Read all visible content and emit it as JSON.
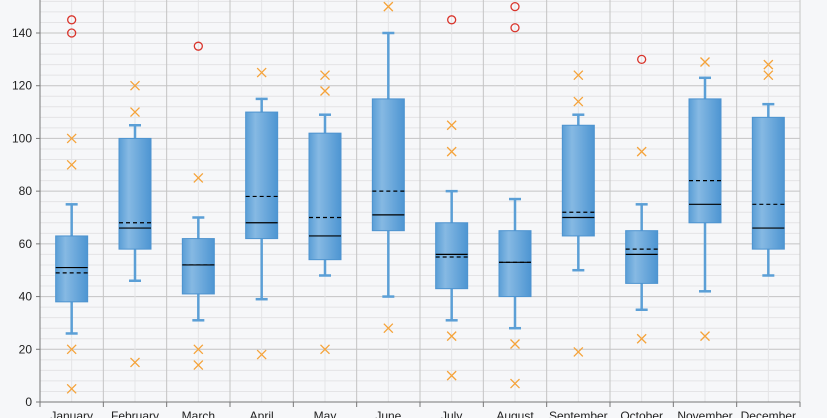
{
  "chart_data": {
    "type": "boxplot",
    "title": "",
    "xlabel": "",
    "ylabel": "",
    "ylim": [
      0,
      152
    ],
    "yticks": [
      0,
      20,
      40,
      60,
      80,
      100,
      120,
      140
    ],
    "grid": true,
    "colors": {
      "box": "#5b9fd6",
      "box_light": "#8bbde6",
      "extreme_outlier": "#d9342b",
      "outlier": "#f5a33a",
      "median": "#000000",
      "mean": "#000000"
    },
    "categories": [
      "January",
      "February",
      "March",
      "April",
      "May",
      "June",
      "July",
      "August",
      "September",
      "October",
      "November",
      "December"
    ],
    "boxes": [
      {
        "min": 26,
        "q1": 38,
        "median": 51,
        "mean": 49,
        "q3": 63,
        "max": 75,
        "outliers": [
          100,
          90,
          20,
          5
        ],
        "extremes": [
          145,
          140
        ]
      },
      {
        "min": 46,
        "q1": 58,
        "median": 66,
        "mean": 68,
        "q3": 100,
        "max": 105,
        "outliers": [
          120,
          110,
          15
        ],
        "extremes": []
      },
      {
        "min": 31,
        "q1": 41,
        "median": 52,
        "mean": 52,
        "q3": 62,
        "max": 70,
        "outliers": [
          85,
          20,
          14
        ],
        "extremes": [
          135
        ]
      },
      {
        "min": 39,
        "q1": 62,
        "median": 68,
        "mean": 78,
        "q3": 110,
        "max": 115,
        "outliers": [
          125,
          18
        ],
        "extremes": []
      },
      {
        "min": 48,
        "q1": 54,
        "median": 63,
        "mean": 70,
        "q3": 102,
        "max": 109,
        "outliers": [
          124,
          118,
          20
        ],
        "extremes": []
      },
      {
        "min": 40,
        "q1": 65,
        "median": 71,
        "mean": 80,
        "q3": 115,
        "max": 140,
        "outliers": [
          150,
          28
        ],
        "extremes": []
      },
      {
        "min": 31,
        "q1": 43,
        "median": 56,
        "mean": 55,
        "q3": 68,
        "max": 80,
        "outliers": [
          105,
          95,
          25,
          10
        ],
        "extremes": [
          145
        ]
      },
      {
        "min": 28,
        "q1": 40,
        "median": 53,
        "mean": 53,
        "q3": 65,
        "max": 77,
        "outliers": [
          22,
          7
        ],
        "extremes": [
          150,
          142
        ]
      },
      {
        "min": 50,
        "q1": 63,
        "median": 70,
        "mean": 72,
        "q3": 105,
        "max": 109,
        "outliers": [
          124,
          114,
          19
        ],
        "extremes": []
      },
      {
        "min": 35,
        "q1": 45,
        "median": 56,
        "mean": 58,
        "q3": 65,
        "max": 75,
        "outliers": [
          95,
          24
        ],
        "extremes": [
          130
        ]
      },
      {
        "min": 42,
        "q1": 68,
        "median": 75,
        "mean": 84,
        "q3": 115,
        "max": 123,
        "outliers": [
          129,
          25
        ],
        "extremes": []
      },
      {
        "min": 48,
        "q1": 58,
        "median": 66,
        "mean": 75,
        "q3": 108,
        "max": 113,
        "outliers": [
          128,
          124
        ],
        "extremes": []
      }
    ]
  }
}
